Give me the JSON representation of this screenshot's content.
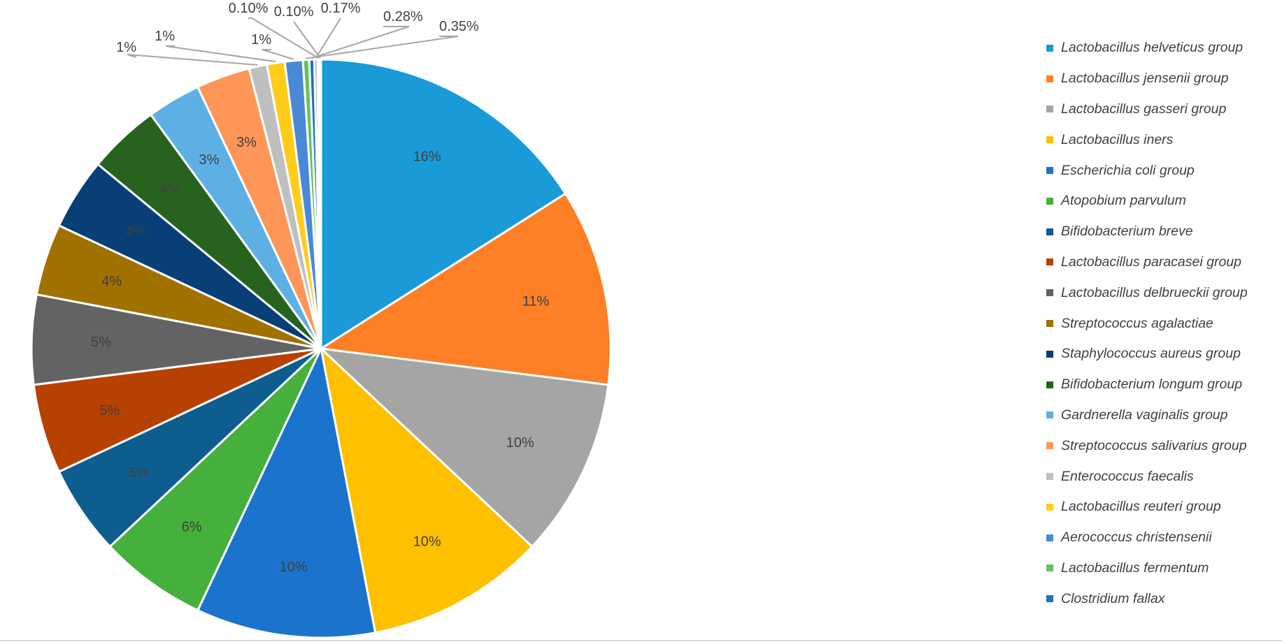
{
  "chart_data": {
    "type": "pie",
    "title": "",
    "legend_position": "right",
    "start_angle_deg": 0,
    "direction": "clockwise",
    "slices": [
      {
        "name": "Lactobacillus helveticus group",
        "value": 16,
        "label": "16%",
        "color": "#1a9bd7",
        "label_color": "#404040"
      },
      {
        "name": "Lactobacillus jensenii group",
        "value": 11,
        "label": "11%",
        "color": "#fd7f26",
        "label_color": "#404040"
      },
      {
        "name": "Lactobacillus gasseri group",
        "value": 10,
        "label": "10%",
        "color": "#a5a5a5",
        "label_color": "#404040"
      },
      {
        "name": "Lactobacillus iners",
        "value": 10,
        "label": "10%",
        "color": "#ffc000",
        "label_color": "#404040"
      },
      {
        "name": "Escherichia coli group",
        "value": 10,
        "label": "10%",
        "color": "#1b74cb",
        "label_color": "#404040"
      },
      {
        "name": "Atopobium parvulum",
        "value": 6,
        "label": "6%",
        "color": "#46b03c",
        "label_color": "#404040"
      },
      {
        "name": "Bifidobacterium breve",
        "value": 5,
        "label": "5%",
        "color": "#0e5d8f",
        "label_color": "#404040"
      },
      {
        "name": "Lactobacillus paracasei group",
        "value": 5,
        "label": "5%",
        "color": "#b74100",
        "label_color": "#404040"
      },
      {
        "name": "Lactobacillus delbrueckii group",
        "value": 5,
        "label": "5%",
        "color": "#636363",
        "label_color": "#404040"
      },
      {
        "name": "Streptococcus agalactiae",
        "value": 4,
        "label": "4%",
        "color": "#a17100",
        "label_color": "#404040"
      },
      {
        "name": "Staphylococcus aureus group",
        "value": 4,
        "label": "4%",
        "color": "#073f76",
        "label_color": "#404040"
      },
      {
        "name": "Bifidobacterium longum group",
        "value": 4,
        "label": "4%",
        "color": "#28621f",
        "label_color": "#404040"
      },
      {
        "name": "Gardnerella vaginalis group",
        "value": 3,
        "label": "3%",
        "color": "#5eb0e4",
        "label_color": "#404040"
      },
      {
        "name": "Streptococcus salivarius group",
        "value": 3,
        "label": "3%",
        "color": "#fe965a",
        "label_color": "#404040"
      },
      {
        "name": "Enterococcus faecalis",
        "value": 1,
        "label": "1%",
        "color": "#bfbfbf",
        "label_color": "#404040"
      },
      {
        "name": "Lactobacillus reuteri group",
        "value": 1,
        "label": "1%",
        "color": "#ffcc1a",
        "label_color": "#404040"
      },
      {
        "name": "Aerococcus christensenii",
        "value": 1,
        "label": "1%",
        "color": "#4a89d6",
        "label_color": "#404040"
      },
      {
        "name": "Lactobacillus fermentum",
        "value": 0.35,
        "label": "0.35%",
        "color": "#69c05c",
        "label_color": "#404040"
      },
      {
        "name": "Clostridium fallax",
        "value": 0.28,
        "label": "0.28%",
        "color": "#1e73be",
        "label_color": "#404040"
      },
      {
        "name": "",
        "value": 0.17,
        "label": "0.17%",
        "color": "#9e9e9e",
        "label_color": "#404040"
      },
      {
        "name": "",
        "value": 0.1,
        "label": "0.10%",
        "color": "#ffd54d",
        "label_color": "#404040"
      },
      {
        "name": "",
        "value": 0.1,
        "label": "0.10%",
        "color": "#7fa6dc",
        "label_color": "#404040"
      }
    ]
  }
}
